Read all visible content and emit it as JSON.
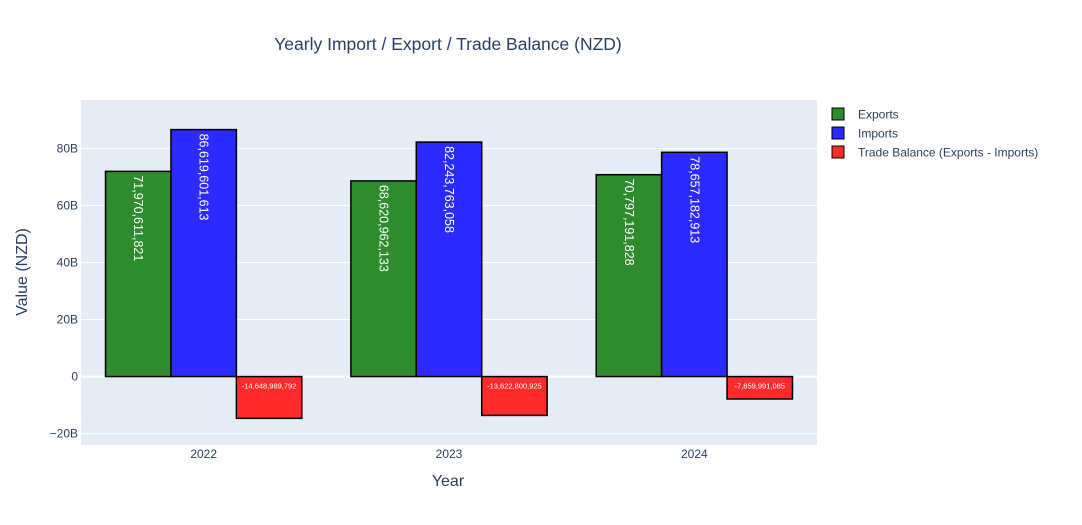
{
  "chart_data": {
    "type": "bar",
    "title": "Yearly Import / Export / Trade Balance (NZD)",
    "xlabel": "Year",
    "ylabel": "Value (NZD)",
    "categories": [
      "2022",
      "2023",
      "2024"
    ],
    "ylim": [
      -24000000000,
      97000000000
    ],
    "yticks": [
      -20000000000,
      0,
      20000000000,
      40000000000,
      60000000000,
      80000000000
    ],
    "ytick_labels": [
      "−20B",
      "0",
      "20B",
      "40B",
      "60B",
      "80B"
    ],
    "grid": true,
    "legend_position": "top-right",
    "series": [
      {
        "name": "Exports",
        "color": "#2e8b2e",
        "values": [
          71970611821,
          68620962133,
          70797191828
        ],
        "labels": [
          "71,970,611,821",
          "68,620,962,133",
          "70,797,191,828"
        ]
      },
      {
        "name": "Imports",
        "color": "#2b2bff",
        "values": [
          86619601613,
          82243763058,
          78657182913
        ],
        "labels": [
          "86,619,601,613",
          "82,243,763,058",
          "78,657,182,913"
        ]
      },
      {
        "name": "Trade Balance (Exports - Imports)",
        "color": "#ff2b2b",
        "values": [
          -14648989792,
          -13622800925,
          -7859991085
        ],
        "labels": [
          "-14,648,989,792",
          "-13,622,800,925",
          "-7,859,991,085"
        ]
      }
    ]
  }
}
